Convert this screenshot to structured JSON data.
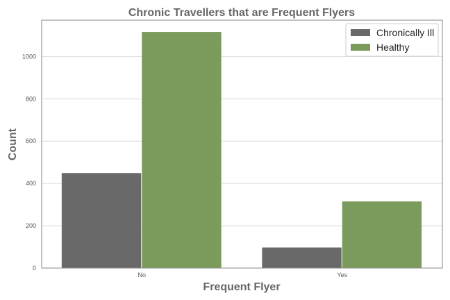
{
  "chart_data": {
    "type": "bar",
    "title": "Chronic Travellers that are Frequent Flyers",
    "xlabel": "Frequent Flyer",
    "ylabel": "Count",
    "categories": [
      "No",
      "Yes"
    ],
    "series": [
      {
        "name": "Chronically Ill",
        "values": [
          449,
          97
        ],
        "color": "#696969"
      },
      {
        "name": "Healthy",
        "values": [
          1116,
          315
        ],
        "color": "#7b9b5c"
      }
    ],
    "ylim": [
      0,
      1172
    ],
    "yticks": [
      0,
      200,
      400,
      600,
      800,
      1000
    ],
    "grid": "horizontal",
    "legend_position": "top-right"
  }
}
